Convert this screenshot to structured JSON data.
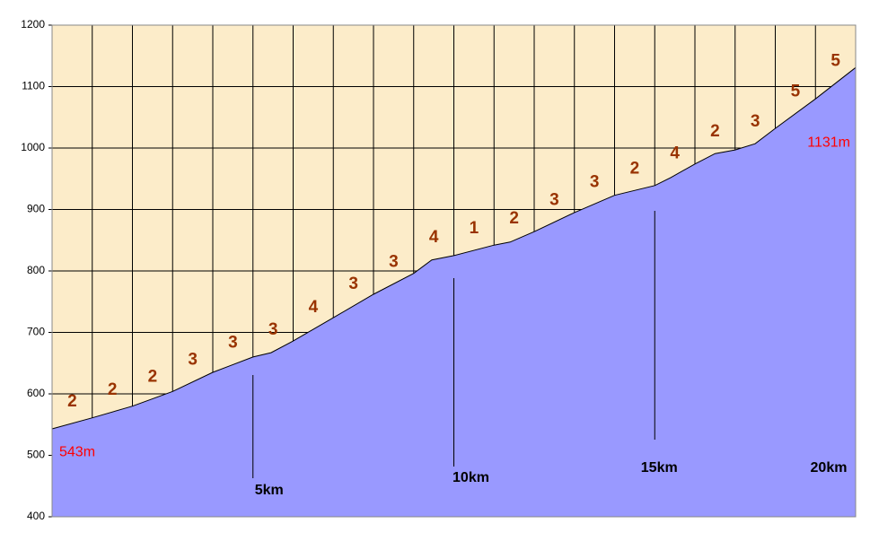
{
  "chart_data": {
    "type": "area",
    "x": [
      0,
      1,
      2,
      3,
      4,
      5,
      5.45,
      6,
      7,
      8,
      9,
      9.45,
      10,
      11,
      11.4,
      12,
      13,
      14,
      15,
      15.4,
      16,
      16.5,
      17,
      17.5,
      18,
      19,
      20
    ],
    "values": [
      543,
      561,
      580,
      604,
      635,
      660,
      667,
      686,
      724,
      762,
      796,
      818,
      825,
      842,
      847,
      864,
      895,
      923,
      939,
      952,
      974,
      991,
      997,
      1007,
      1032,
      1080,
      1131
    ],
    "color": "#9999ff",
    "background": "#fcecc9",
    "xlim": [
      0,
      20
    ],
    "xticks": [
      0,
      1,
      2,
      3,
      4,
      5,
      6,
      7,
      8,
      9,
      10,
      11,
      12,
      13,
      14,
      15,
      16,
      17,
      18,
      19,
      20
    ],
    "ylim": [
      400,
      1200
    ],
    "yticks": [
      400,
      500,
      600,
      700,
      800,
      900,
      1000,
      1100,
      1200
    ],
    "grid": true,
    "gradients": [
      2,
      2,
      2,
      3,
      3,
      3,
      4,
      3,
      3,
      4,
      1,
      2,
      3,
      3,
      2,
      4,
      2,
      3,
      5,
      5
    ],
    "gradient_color": "#993300",
    "distance_markers": [
      {
        "x": 5,
        "label": "5km"
      },
      {
        "x": 10,
        "label": "10km"
      },
      {
        "x": 15,
        "label": "15km"
      },
      {
        "x": 20,
        "label": "20km"
      }
    ],
    "elevation_labels": [
      {
        "x": 0,
        "y": 543,
        "label": "543m"
      },
      {
        "x": 20,
        "y": 1131,
        "label": "1131m"
      }
    ],
    "elevation_label_color": "#ff0000"
  }
}
